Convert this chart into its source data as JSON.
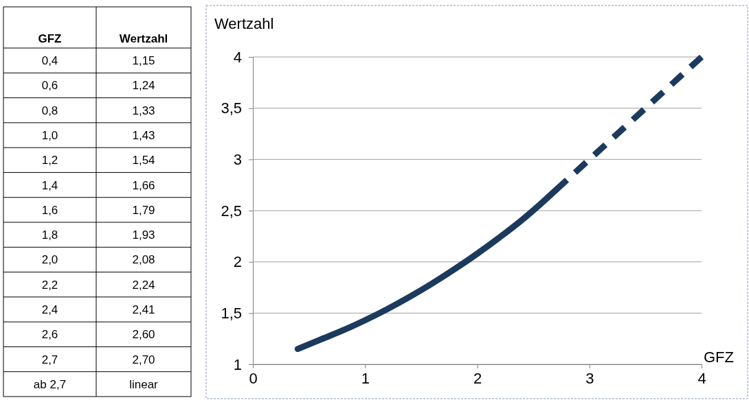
{
  "chart_data": {
    "type": "line",
    "xlabel": "GFZ",
    "ylabel": "Wertzahl",
    "xlim": [
      0,
      4
    ],
    "xticks": [
      0,
      1,
      2,
      3,
      4
    ],
    "ylim": [
      1,
      4
    ],
    "yticks": [
      1,
      {
        "value": 1.5,
        "label": "1,5"
      },
      2,
      {
        "value": 2.5,
        "label": "2,5"
      },
      3,
      {
        "value": 3.5,
        "label": "3,5"
      },
      4
    ],
    "grid": "y",
    "marker": "none",
    "series": [
      {
        "color": "#1c3a5e",
        "line_style": "solid",
        "x": [
          0.4,
          0.6,
          0.8,
          1.0,
          1.2,
          1.4,
          1.6,
          1.8,
          2.0,
          2.2,
          2.4,
          2.6,
          2.7
        ],
        "values": [
          1.15,
          1.24,
          1.33,
          1.43,
          1.54,
          1.66,
          1.79,
          1.93,
          2.08,
          2.24,
          2.41,
          2.6,
          2.7
        ]
      },
      {
        "color": "#1c3a5e",
        "line_style": "dashed",
        "x": [
          2.7,
          4
        ],
        "values": [
          2.7,
          4
        ]
      }
    ],
    "annotations": [
      "0,4",
      "1,15",
      "0,6",
      "1,24",
      "0,8",
      "1,33",
      "1,0",
      "1,43",
      "1,2",
      "1,54",
      "1,4",
      "1,66",
      "1,6",
      "1,79",
      "1,8",
      "1,93",
      "2,0",
      "2,08",
      "2,2",
      "2,24",
      "2,4",
      "2,41",
      "2,6",
      "2,60",
      "2,7",
      "2,70",
      "ab 2,7",
      "linear"
    ]
  }
}
